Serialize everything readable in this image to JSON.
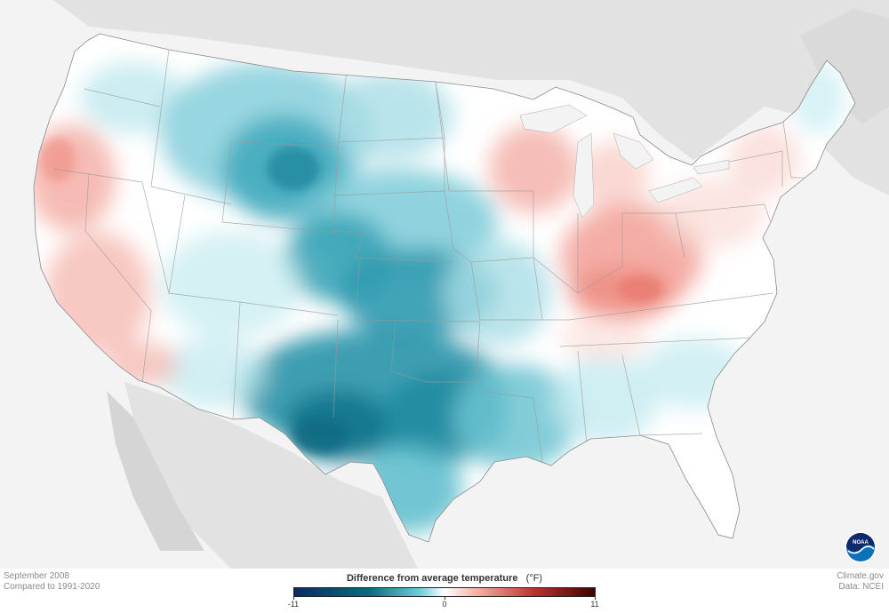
{
  "caption": {
    "date": "September 2008",
    "comparison": "Compared to 1991-2020"
  },
  "legend": {
    "title": "Difference from average temperature",
    "unit": "(°F)",
    "min": "-11",
    "mid": "0",
    "max": "11",
    "colors": [
      "#0b2b63",
      "#0a6b80",
      "#6fcfd9",
      "#ffffff",
      "#f3a79b",
      "#b8342e",
      "#3d0300"
    ]
  },
  "credits": {
    "source": "Climate.gov",
    "data": "Data: NCEI"
  },
  "logo": {
    "text": "NOAA"
  }
}
